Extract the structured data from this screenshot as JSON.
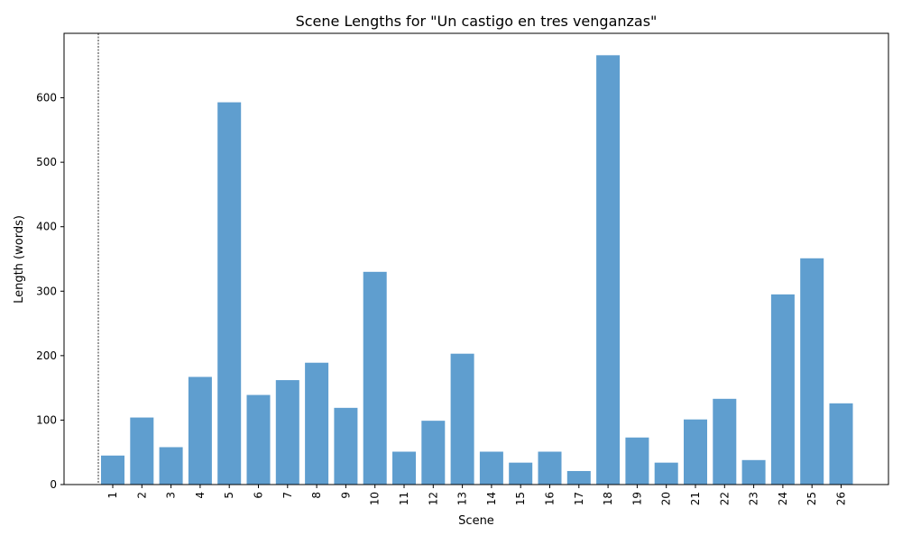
{
  "chart_data": {
    "type": "bar",
    "title": "Scene Lengths for \"Un castigo en tres venganzas\"",
    "xlabel": "Scene",
    "ylabel": "Length (words)",
    "categories": [
      "1",
      "2",
      "3",
      "4",
      "5",
      "6",
      "7",
      "8",
      "9",
      "10",
      "11",
      "12",
      "13",
      "14",
      "15",
      "16",
      "17",
      "18",
      "19",
      "20",
      "21",
      "22",
      "23",
      "24",
      "25",
      "26"
    ],
    "values": [
      45,
      104,
      58,
      167,
      593,
      139,
      162,
      189,
      119,
      330,
      51,
      99,
      203,
      51,
      34,
      51,
      21,
      666,
      73,
      34,
      101,
      133,
      38,
      295,
      351,
      126
    ],
    "ylim": [
      0,
      700
    ],
    "yticks": [
      0,
      100,
      200,
      300,
      400,
      500,
      600
    ],
    "bar_color": "#5f9ecf",
    "grid": false,
    "x_tick_rotation": "vertical",
    "reference_line": "dotted vertical line before scene 1"
  }
}
